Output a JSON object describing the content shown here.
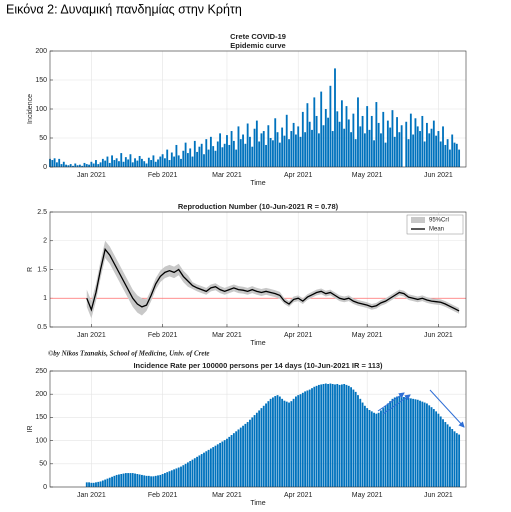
{
  "caption": "Εικόνα 2: Δυναμική πανδημίας στην Κρήτη",
  "credit": "©by Nikos Tzanakis, School of Medicine, Univ. of Crete",
  "chart_data": [
    {
      "type": "bar",
      "title": "Crete COVID-19",
      "subtitle": "Epidemic curve",
      "x_label": "Time",
      "y_label": "Incidence",
      "xlim": [
        0,
        181
      ],
      "ylim": [
        0,
        200
      ],
      "yticks": [
        0,
        50,
        100,
        150,
        200
      ],
      "xticks": [
        {
          "value": 18,
          "label": "Jan 2021"
        },
        {
          "value": 49,
          "label": "Feb 2021"
        },
        {
          "value": 77,
          "label": "Mar 2021"
        },
        {
          "value": 108,
          "label": "Apr 2021"
        },
        {
          "value": 138,
          "label": "May 2021"
        },
        {
          "value": 169,
          "label": "Jun 2021"
        }
      ],
      "grid": true,
      "series": [
        {
          "color": "#0072bd",
          "x": [
            0,
            1,
            2,
            3,
            4,
            5,
            6,
            7,
            8,
            9,
            10,
            11,
            12,
            13,
            14,
            15,
            16,
            17,
            18,
            19,
            20,
            21,
            22,
            23,
            24,
            25,
            26,
            27,
            28,
            29,
            30,
            31,
            32,
            33,
            34,
            35,
            36,
            37,
            38,
            39,
            40,
            41,
            42,
            43,
            44,
            45,
            46,
            47,
            48,
            49,
            50,
            51,
            52,
            53,
            54,
            55,
            56,
            57,
            58,
            59,
            60,
            61,
            62,
            63,
            64,
            65,
            66,
            67,
            68,
            69,
            70,
            71,
            72,
            73,
            74,
            75,
            76,
            77,
            78,
            79,
            80,
            81,
            82,
            83,
            84,
            85,
            86,
            87,
            88,
            89,
            90,
            91,
            92,
            93,
            94,
            95,
            96,
            97,
            98,
            99,
            100,
            101,
            102,
            103,
            104,
            105,
            106,
            107,
            108,
            109,
            110,
            111,
            112,
            113,
            114,
            115,
            116,
            117,
            118,
            119,
            120,
            121,
            122,
            123,
            124,
            125,
            126,
            127,
            128,
            129,
            130,
            131,
            132,
            133,
            134,
            135,
            136,
            137,
            138,
            139,
            140,
            141,
            142,
            143,
            144,
            145,
            146,
            147,
            148,
            149,
            150,
            151,
            152,
            153,
            154,
            155,
            156,
            157,
            158,
            159,
            160,
            161,
            162,
            163,
            164,
            165,
            166,
            167,
            168,
            169,
            170,
            171,
            172,
            173,
            174,
            175,
            176,
            177,
            178
          ],
          "values": [
            14,
            12,
            15,
            8,
            14,
            5,
            9,
            4,
            3,
            5,
            2,
            6,
            3,
            4,
            2,
            7,
            5,
            4,
            9,
            6,
            12,
            5,
            8,
            14,
            11,
            18,
            7,
            20,
            12,
            15,
            10,
            24,
            9,
            17,
            13,
            22,
            8,
            15,
            11,
            19,
            14,
            10,
            6,
            16,
            12,
            20,
            9,
            13,
            18,
            22,
            15,
            30,
            12,
            25,
            18,
            38,
            20,
            14,
            28,
            42,
            24,
            32,
            18,
            45,
            26,
            35,
            40,
            22,
            48,
            30,
            52,
            36,
            28,
            44,
            58,
            34,
            40,
            55,
            38,
            62,
            45,
            30,
            70,
            48,
            56,
            40,
            75,
            52,
            35,
            66,
            80,
            44,
            58,
            62,
            38,
            72,
            50,
            46,
            84,
            60,
            42,
            68,
            54,
            90,
            48,
            62,
            76,
            56,
            70,
            52,
            95,
            60,
            110,
            78,
            64,
            120,
            88,
            58,
            130,
            72,
            100,
            85,
            140,
            62,
            170,
            96,
            78,
            115,
            66,
            105,
            82,
            60,
            92,
            48,
            120,
            70,
            88,
            58,
            105,
            64,
            88,
            46,
            112,
            76,
            58,
            95,
            42,
            80,
            68,
            98,
            52,
            86,
            60,
            72,
            0,
            78,
            48,
            92,
            56,
            84,
            70,
            62,
            88,
            44,
            76,
            58,
            66,
            80,
            54,
            62,
            44,
            70,
            38,
            48,
            30,
            56,
            42,
            40,
            30
          ]
        }
      ]
    },
    {
      "type": "line",
      "title": "Reproduction Number (10-Jun-2021 R = 0.78)",
      "x_label": "Time",
      "y_label": "R",
      "xlim": [
        0,
        181
      ],
      "ylim": [
        0.5,
        2.5
      ],
      "yticks": [
        0.5,
        1,
        1.5,
        2,
        2.5
      ],
      "xticks": [
        {
          "value": 18,
          "label": "Jan 2021"
        },
        {
          "value": 49,
          "label": "Feb 2021"
        },
        {
          "value": 77,
          "label": "Mar 2021"
        },
        {
          "value": 108,
          "label": "Apr 2021"
        },
        {
          "value": 138,
          "label": "May 2021"
        },
        {
          "value": 169,
          "label": "Jun 2021"
        }
      ],
      "grid": true,
      "refline": 1,
      "refline_color": "#ff6b6b",
      "legend": "upper right",
      "x": [
        16,
        18,
        20,
        22,
        24,
        26,
        28,
        30,
        32,
        34,
        36,
        38,
        40,
        42,
        44,
        46,
        48,
        50,
        52,
        54,
        56,
        58,
        60,
        62,
        64,
        66,
        68,
        70,
        72,
        74,
        76,
        78,
        80,
        82,
        84,
        86,
        88,
        90,
        92,
        94,
        96,
        98,
        100,
        102,
        104,
        106,
        108,
        110,
        112,
        114,
        116,
        118,
        120,
        122,
        124,
        126,
        128,
        130,
        132,
        134,
        136,
        138,
        140,
        142,
        144,
        146,
        148,
        150,
        152,
        154,
        156,
        158,
        160,
        162,
        164,
        166,
        168,
        170,
        172,
        174,
        176,
        178
      ],
      "series": [
        {
          "name": "95%CrI",
          "color": "#c8c8c8",
          "lower": [
            0.85,
            0.65,
            0.95,
            1.35,
            1.7,
            1.6,
            1.45,
            1.3,
            1.15,
            1.0,
            0.85,
            0.75,
            0.7,
            0.78,
            0.95,
            1.15,
            1.28,
            1.35,
            1.38,
            1.35,
            1.4,
            1.28,
            1.2,
            1.16,
            1.12,
            1.09,
            1.06,
            1.12,
            1.14,
            1.09,
            1.06,
            1.09,
            1.12,
            1.09,
            1.08,
            1.06,
            1.09,
            1.06,
            1.04,
            1.06,
            1.04,
            1.02,
            0.99,
            0.9,
            0.85,
            0.93,
            0.95,
            0.9,
            0.97,
            1.01,
            1.05,
            1.07,
            1.03,
            1.05,
            1.0,
            0.95,
            0.93,
            0.95,
            0.9,
            0.87,
            0.85,
            0.83,
            0.8,
            0.82,
            0.87,
            0.9,
            0.95,
            1.0,
            1.05,
            1.03,
            0.97,
            0.95,
            0.93,
            0.95,
            0.92,
            0.9,
            0.89,
            0.88,
            0.85,
            0.81,
            0.77,
            0.73
          ],
          "upper": [
            1.15,
            0.95,
            1.25,
            1.65,
            2.0,
            1.9,
            1.75,
            1.6,
            1.45,
            1.3,
            1.15,
            1.05,
            1.0,
            0.98,
            1.15,
            1.35,
            1.48,
            1.55,
            1.58,
            1.55,
            1.6,
            1.48,
            1.4,
            1.28,
            1.24,
            1.21,
            1.18,
            1.24,
            1.26,
            1.21,
            1.18,
            1.21,
            1.24,
            1.21,
            1.2,
            1.18,
            1.21,
            1.18,
            1.16,
            1.18,
            1.16,
            1.14,
            1.11,
            1.0,
            0.95,
            1.03,
            1.05,
            1.0,
            1.07,
            1.11,
            1.15,
            1.17,
            1.13,
            1.15,
            1.1,
            1.05,
            1.03,
            1.05,
            1.0,
            0.97,
            0.95,
            0.93,
            0.9,
            0.92,
            0.97,
            1.0,
            1.05,
            1.1,
            1.15,
            1.13,
            1.07,
            1.05,
            1.03,
            1.05,
            1.02,
            1.0,
            0.99,
            0.98,
            0.95,
            0.91,
            0.87,
            0.83
          ]
        },
        {
          "name": "Mean",
          "color": "#000000",
          "values": [
            1.0,
            0.8,
            1.1,
            1.5,
            1.85,
            1.75,
            1.6,
            1.45,
            1.3,
            1.15,
            1.0,
            0.9,
            0.85,
            0.88,
            1.05,
            1.25,
            1.38,
            1.45,
            1.48,
            1.45,
            1.5,
            1.38,
            1.3,
            1.22,
            1.18,
            1.15,
            1.12,
            1.18,
            1.2,
            1.15,
            1.12,
            1.15,
            1.18,
            1.15,
            1.14,
            1.12,
            1.15,
            1.12,
            1.1,
            1.12,
            1.1,
            1.08,
            1.05,
            0.95,
            0.9,
            0.98,
            1.0,
            0.95,
            1.02,
            1.06,
            1.1,
            1.12,
            1.08,
            1.1,
            1.05,
            1.0,
            0.98,
            1.0,
            0.95,
            0.92,
            0.9,
            0.88,
            0.85,
            0.87,
            0.92,
            0.95,
            1.0,
            1.05,
            1.1,
            1.08,
            1.02,
            1.0,
            0.98,
            1.0,
            0.97,
            0.95,
            0.94,
            0.93,
            0.9,
            0.86,
            0.82,
            0.78
          ]
        }
      ]
    },
    {
      "type": "bar",
      "title": "Incidence Rate per 100000 persons per 14 days (10-Jun-2021 IR = 113)",
      "x_label": "Time",
      "y_label": "IR",
      "xlim": [
        0,
        181
      ],
      "ylim": [
        0,
        250
      ],
      "yticks": [
        0,
        50,
        100,
        150,
        200,
        250
      ],
      "xticks": [
        {
          "value": 18,
          "label": "Jan 2021"
        },
        {
          "value": 49,
          "label": "Feb 2021"
        },
        {
          "value": 77,
          "label": "Mar 2021"
        },
        {
          "value": 108,
          "label": "Apr 2021"
        },
        {
          "value": 138,
          "label": "May 2021"
        },
        {
          "value": 169,
          "label": "Jun 2021"
        }
      ],
      "grid": true,
      "series": [
        {
          "color": "#0072bd",
          "x": [
            16,
            17,
            18,
            19,
            20,
            21,
            22,
            23,
            24,
            25,
            26,
            27,
            28,
            29,
            30,
            31,
            32,
            33,
            34,
            35,
            36,
            37,
            38,
            39,
            40,
            41,
            42,
            43,
            44,
            45,
            46,
            47,
            48,
            49,
            50,
            51,
            52,
            53,
            54,
            55,
            56,
            57,
            58,
            59,
            60,
            61,
            62,
            63,
            64,
            65,
            66,
            67,
            68,
            69,
            70,
            71,
            72,
            73,
            74,
            75,
            76,
            77,
            78,
            79,
            80,
            81,
            82,
            83,
            84,
            85,
            86,
            87,
            88,
            89,
            90,
            91,
            92,
            93,
            94,
            95,
            96,
            97,
            98,
            99,
            100,
            101,
            102,
            103,
            104,
            105,
            106,
            107,
            108,
            109,
            110,
            111,
            112,
            113,
            114,
            115,
            116,
            117,
            118,
            119,
            120,
            121,
            122,
            123,
            124,
            125,
            126,
            127,
            128,
            129,
            130,
            131,
            132,
            133,
            134,
            135,
            136,
            137,
            138,
            139,
            140,
            141,
            142,
            143,
            144,
            145,
            146,
            147,
            148,
            149,
            150,
            151,
            152,
            153,
            154,
            155,
            156,
            157,
            158,
            159,
            160,
            161,
            162,
            163,
            164,
            165,
            166,
            167,
            168,
            169,
            170,
            171,
            172,
            173,
            174,
            175,
            176,
            177,
            178
          ],
          "values": [
            10,
            10,
            9,
            9,
            10,
            11,
            12,
            14,
            16,
            18,
            20,
            22,
            24,
            26,
            27,
            28,
            29,
            30,
            30,
            30,
            30,
            29,
            28,
            27,
            26,
            25,
            24,
            24,
            23,
            23,
            24,
            25,
            26,
            28,
            30,
            32,
            34,
            36,
            38,
            40,
            42,
            44,
            47,
            50,
            53,
            56,
            59,
            62,
            65,
            68,
            71,
            74,
            77,
            80,
            83,
            86,
            89,
            92,
            95,
            98,
            101,
            104,
            108,
            112,
            116,
            120,
            124,
            128,
            132,
            136,
            140,
            145,
            150,
            155,
            160,
            165,
            170,
            175,
            180,
            185,
            190,
            193,
            196,
            198,
            195,
            190,
            186,
            184,
            182,
            185,
            190,
            195,
            198,
            200,
            203,
            206,
            208,
            210,
            213,
            216,
            218,
            220,
            221,
            222,
            223,
            222,
            223,
            222,
            221,
            222,
            220,
            221,
            222,
            220,
            218,
            215,
            210,
            205,
            198,
            190,
            182,
            175,
            170,
            166,
            163,
            160,
            158,
            160,
            165,
            170,
            175,
            180,
            185,
            190,
            193,
            195,
            196,
            195,
            194,
            193,
            192,
            191,
            190,
            189,
            188,
            186,
            184,
            182,
            180,
            176,
            172,
            168,
            163,
            158,
            152,
            146,
            140,
            135,
            130,
            125,
            120,
            116,
            113
          ]
        }
      ]
    }
  ]
}
